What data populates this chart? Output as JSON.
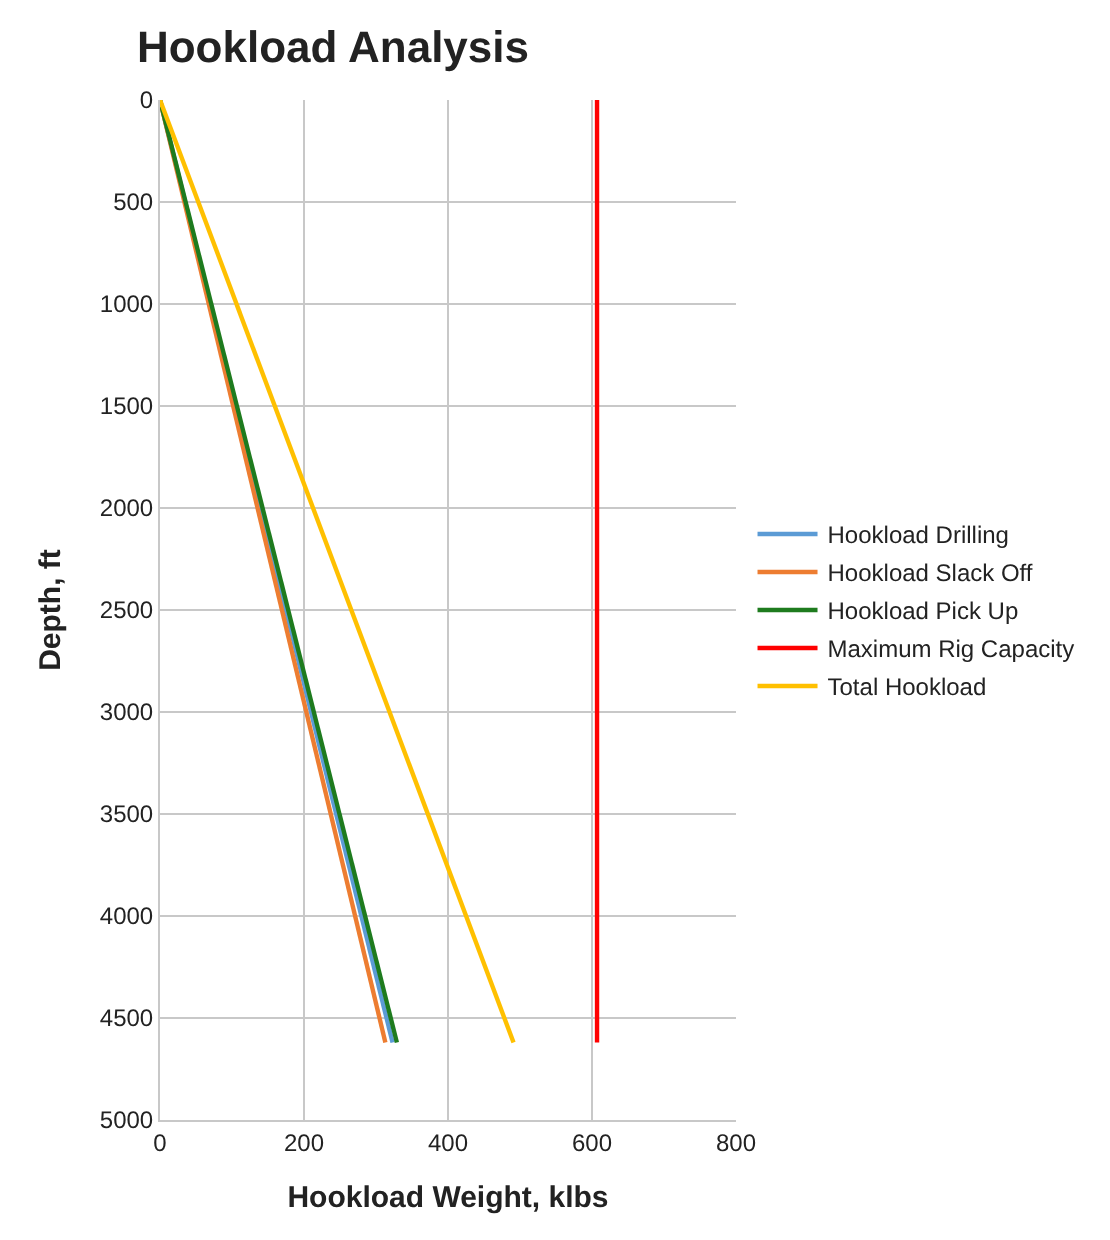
{
  "chart_data": {
    "type": "line",
    "title": "Hookload Analysis",
    "xlabel": "Hookload Weight, klbs",
    "ylabel": "Depth, ft",
    "xlim": [
      0,
      800
    ],
    "xticks": [
      0,
      200,
      400,
      600,
      800
    ],
    "ylim": [
      5000,
      0
    ],
    "yticks": [
      0,
      500,
      1000,
      1500,
      2000,
      2500,
      3000,
      3500,
      4000,
      4500,
      5000
    ],
    "grid": true,
    "legend": "right",
    "marker": "none",
    "line_style": "solid",
    "series": [
      {
        "name": "Hookload Drilling",
        "color": "#5b9bd5",
        "x": [
          0,
          323
        ],
        "values": [
          0,
          4620
        ]
      },
      {
        "name": "Hookload Slack Off",
        "color": "#ed7d31",
        "x": [
          0,
          313
        ],
        "values": [
          0,
          4620
        ]
      },
      {
        "name": "Hookload Pick Up",
        "color": "#1e7b1e",
        "x": [
          0,
          329
        ],
        "values": [
          0,
          4620
        ]
      },
      {
        "name": "Maximum Rig Capacity",
        "color": "#ff0000",
        "x": [
          607,
          607
        ],
        "values": [
          0,
          4620
        ]
      },
      {
        "name": "Total Hookload",
        "color": "#ffc000",
        "x": [
          0,
          491
        ],
        "values": [
          0,
          4620
        ]
      }
    ]
  }
}
